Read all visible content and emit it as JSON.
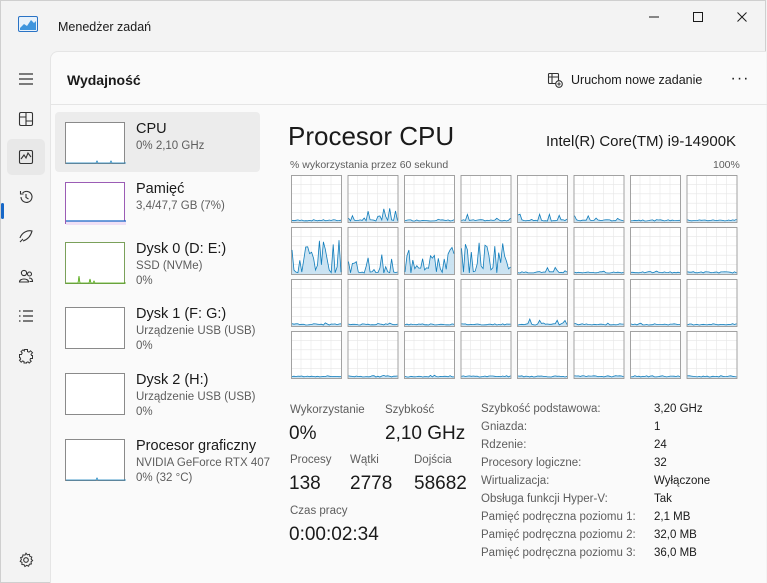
{
  "window": {
    "title": "Menedżer zadań"
  },
  "header": {
    "title": "Wydajność",
    "run_task_label": "Uruchom nowe zadanie",
    "more_label": "···"
  },
  "nav": {
    "items": [
      {
        "name": "hamburger-menu-icon"
      },
      {
        "name": "processes-icon"
      },
      {
        "name": "performance-icon",
        "active": true
      },
      {
        "name": "app-history-icon"
      },
      {
        "name": "startup-apps-icon"
      },
      {
        "name": "users-icon"
      },
      {
        "name": "details-icon"
      },
      {
        "name": "services-icon"
      }
    ],
    "settings": {
      "name": "settings-gear-icon"
    }
  },
  "devices": [
    {
      "name": "CPU",
      "line1": "0%  2,10 GHz",
      "line2": ""
    },
    {
      "name": "Pamięć",
      "line1": "3,4/47,7 GB (7%)",
      "line2": ""
    },
    {
      "name": "Dysk 0 (D: E:)",
      "line1": "SSD (NVMe)",
      "line2": "0%"
    },
    {
      "name": "Dysk 1 (F: G:)",
      "line1": "Urządzenie USB (USB)",
      "line2": "0%"
    },
    {
      "name": "Dysk 2 (H:)",
      "line1": "Urządzenie USB (USB)",
      "line2": "0%"
    },
    {
      "name": "Procesor graficzny",
      "line1": "NVIDIA GeForce RTX 407",
      "line2": "0%  (32 °C)"
    }
  ],
  "detail": {
    "title": "Procesor CPU",
    "model": "Intel(R) Core(TM) i9-14900K",
    "graph_caption": "% wykorzystania przez 60 sekund",
    "graph_max": "100%",
    "stats": {
      "utilization_label": "Wykorzystanie",
      "utilization_value": "0%",
      "speed_label": "Szybkość",
      "speed_value": "2,10 GHz",
      "processes_label": "Procesy",
      "processes_value": "138",
      "threads_label": "Wątki",
      "threads_value": "2778",
      "handles_label": "Dojścia",
      "handles_value": "58682",
      "uptime_label": "Czas pracy",
      "uptime_value": "0:00:02:34"
    },
    "specs": [
      {
        "label": "Szybkość podstawowa:",
        "value": "3,20 GHz"
      },
      {
        "label": "Gniazda:",
        "value": "1"
      },
      {
        "label": "Rdzenie:",
        "value": "24"
      },
      {
        "label": "Procesory logiczne:",
        "value": "32"
      },
      {
        "label": "Wirtualizacja:",
        "value": "Wyłączone"
      },
      {
        "label": "Obsługa funkcji Hyper-V:",
        "value": "Tak"
      },
      {
        "label": "Pamięć podręczna poziomu 1:",
        "value": "2,1 MB"
      },
      {
        "label": "Pamięć podręczna poziomu 2:",
        "value": "32,0 MB"
      },
      {
        "label": "Pamięć podręczna poziomu 3:",
        "value": "36,0 MB"
      }
    ]
  },
  "colors": {
    "accent": "#1667c7",
    "cpu_graph_line": "#117dbb",
    "cpu_graph_fill": "#c5e0f1",
    "memory_line": "#8b12ae",
    "disk_line": "#4da60c"
  }
}
